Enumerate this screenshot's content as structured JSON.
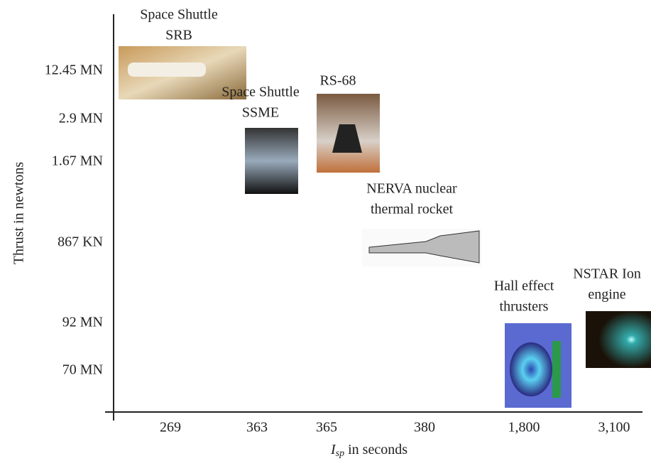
{
  "y_axis": {
    "label": "Thrust in newtons",
    "ticks": [
      "12.45 MN",
      "2.9 MN",
      "1.67 MN",
      "867 KN",
      "92 MN",
      "70 MN"
    ]
  },
  "x_axis": {
    "label": {
      "symbol": "I",
      "subscript": "sp",
      "text": "in seconds"
    },
    "ticks": [
      "269",
      "363",
      "365",
      "380",
      "1,800",
      "3,100"
    ]
  },
  "engines": [
    {
      "lines": [
        "Space Shuttle",
        "SRB"
      ]
    },
    {
      "lines": [
        "Space Shuttle",
        "SSME"
      ]
    },
    {
      "lines": [
        "RS-68"
      ]
    },
    {
      "lines": [
        "NERVA nuclear",
        "thermal rocket"
      ]
    },
    {
      "lines": [
        "Hall effect",
        "thrusters"
      ]
    },
    {
      "lines": [
        "NSTAR Ion",
        "engine"
      ]
    }
  ]
}
